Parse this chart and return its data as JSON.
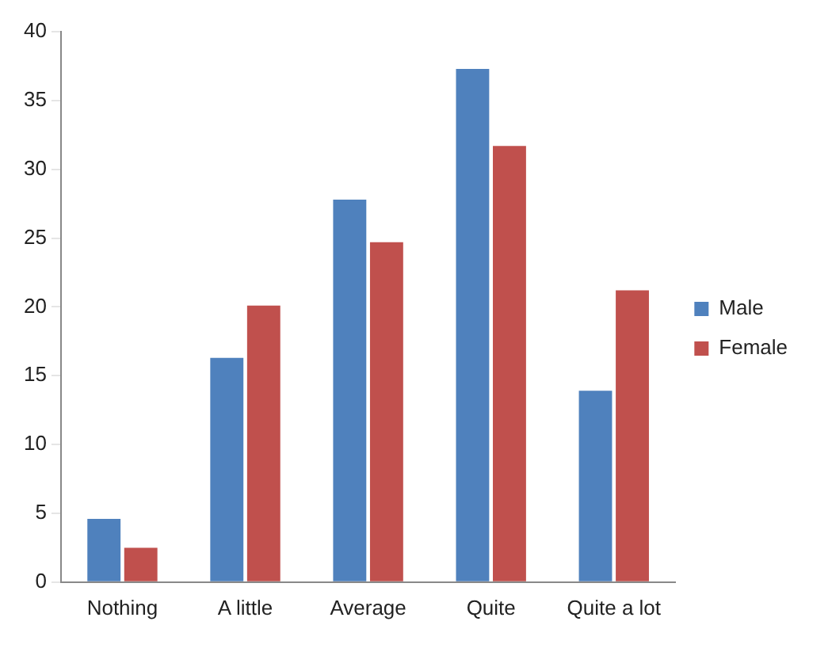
{
  "chart_data": {
    "type": "bar",
    "categories": [
      "Nothing",
      "A little",
      "Average",
      "Quite",
      "Quite a lot"
    ],
    "series": [
      {
        "name": "Male",
        "color": "#4f81bd",
        "values": [
          4.6,
          16.3,
          27.8,
          37.3,
          13.9
        ]
      },
      {
        "name": "Female",
        "color": "#c0504d",
        "values": [
          2.5,
          20.1,
          24.7,
          31.7,
          21.2
        ]
      }
    ],
    "ylim": [
      0,
      40
    ],
    "yticks": [
      0,
      5,
      10,
      15,
      20,
      25,
      30,
      35,
      40
    ],
    "grid": false,
    "legend": "right"
  }
}
